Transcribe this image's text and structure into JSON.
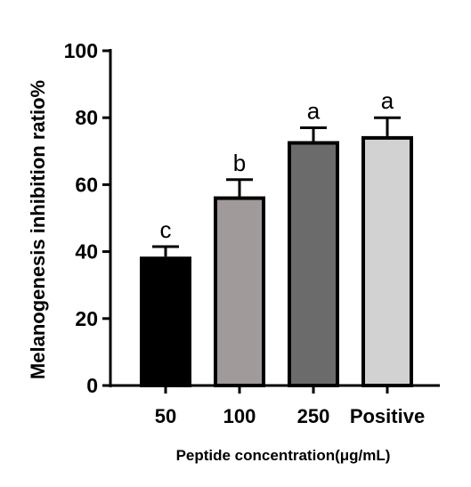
{
  "chart_data": {
    "type": "bar",
    "title": "",
    "xlabel": "Peptide concentration(μg/mL)",
    "ylabel": "Melanogenesis inhibition ratio%",
    "ylim": [
      0,
      100
    ],
    "yticks": [
      0,
      20,
      40,
      60,
      80,
      100
    ],
    "categories": [
      "50",
      "100",
      "250",
      "Positive"
    ],
    "values": [
      38.5,
      56.5,
      73,
      74.5
    ],
    "errors": [
      3,
      5,
      4,
      5.5
    ],
    "significance": [
      "c",
      "b",
      "a",
      "a"
    ],
    "bar_colors": [
      "#000000",
      "#a09a9b",
      "#6b6b6b",
      "#d2d2d2"
    ],
    "edge_color": "#000000",
    "grid": false,
    "legend": "none"
  }
}
